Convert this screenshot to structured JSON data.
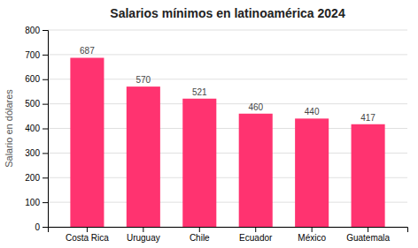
{
  "chart_data": {
    "type": "bar",
    "title": "Salarios mínimos en latinoamérica 2024",
    "categories": [
      "Costa Rica",
      "Uruguay",
      "Chile",
      "Ecuador",
      "México",
      "Guatemala"
    ],
    "values": [
      687,
      570,
      521,
      460,
      440,
      417
    ],
    "color": "#FF3370",
    "ylabel": "Salario en dólares",
    "ylim": [
      0,
      800
    ],
    "yticks": [
      0,
      100,
      200,
      300,
      400,
      500,
      600,
      700,
      800
    ],
    "grid": true,
    "data_labels": true
  }
}
